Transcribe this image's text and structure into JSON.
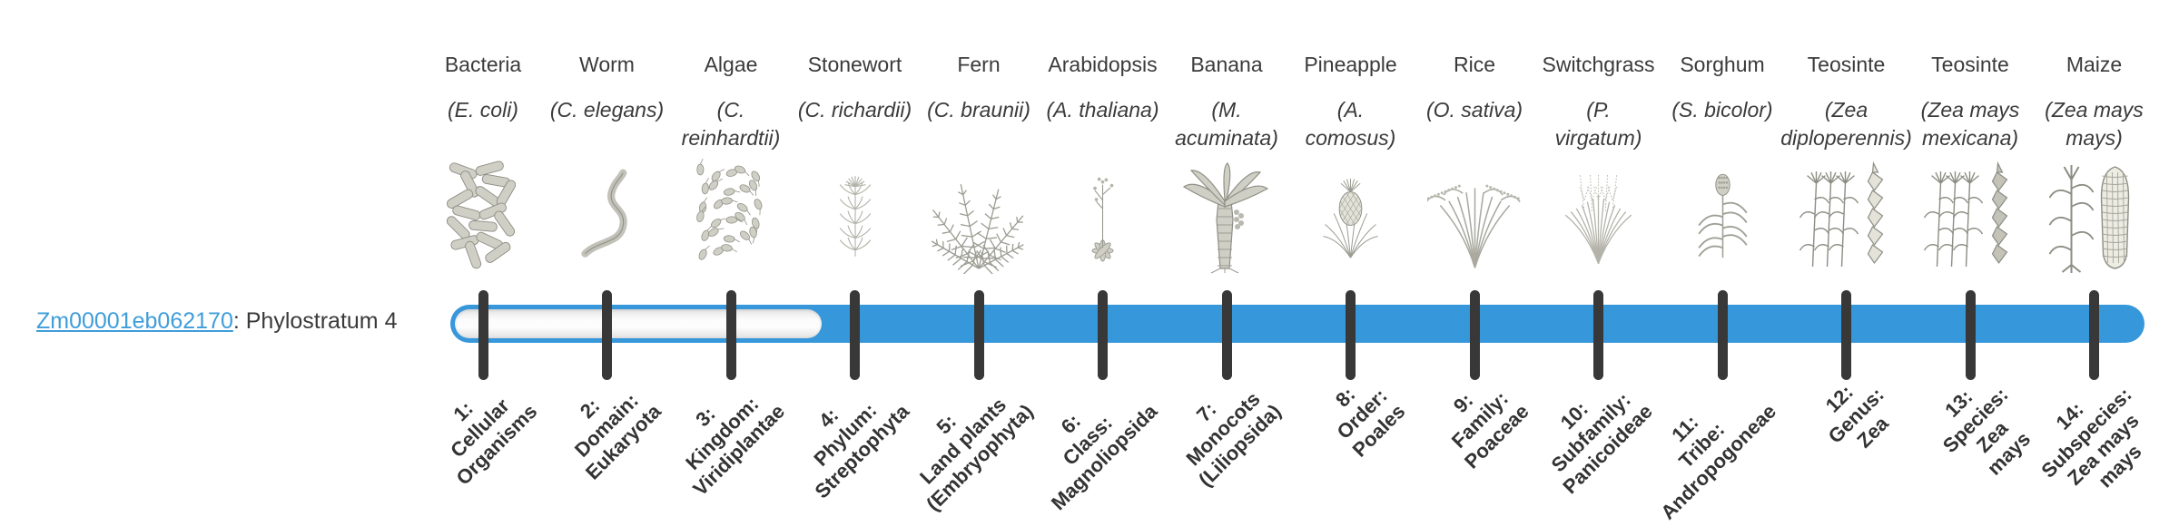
{
  "gene": {
    "id": "Zm00001eb062170",
    "suffix": ": Phylostratum 4",
    "phylostratum": 4
  },
  "colors": {
    "bar_blue": "#3797db",
    "tick_dark": "#383838",
    "link_blue": "#3f9dda",
    "text_dark": "#3a3a3a",
    "sketch_gray": "#a8a89f"
  },
  "organisms": [
    {
      "name": "Bacteria",
      "sci": "(E. coli)",
      "illustration": "bacteria"
    },
    {
      "name": "Worm",
      "sci": "(C. elegans)",
      "illustration": "worm"
    },
    {
      "name": "Algae",
      "sci": "(C.\nreinhardtii)",
      "illustration": "algae"
    },
    {
      "name": "Stonewort",
      "sci": "(C. richardii)",
      "illustration": "stonewort"
    },
    {
      "name": "Fern",
      "sci": "(C. braunii)",
      "illustration": "fern"
    },
    {
      "name": "Arabidopsis",
      "sci": "(A. thaliana)",
      "illustration": "arabidopsis"
    },
    {
      "name": "Banana",
      "sci": "(M.\nacuminata)",
      "illustration": "banana"
    },
    {
      "name": "Pineapple",
      "sci": "(A.\ncomosus)",
      "illustration": "pineapple"
    },
    {
      "name": "Rice",
      "sci": "(O. sativa)",
      "illustration": "rice"
    },
    {
      "name": "Switchgrass",
      "sci": "(P.\nvirgatum)",
      "illustration": "switchgrass"
    },
    {
      "name": "Sorghum",
      "sci": "(S. bicolor)",
      "illustration": "sorghum"
    },
    {
      "name": "Teosinte",
      "sci": "(Zea\ndiploperennis)",
      "illustration": "teosinte-diploperennis"
    },
    {
      "name": "Teosinte",
      "sci": "(Zea mays\nmexicana)",
      "illustration": "teosinte-mexicana"
    },
    {
      "name": "Maize",
      "sci": "(Zea mays\nmays)",
      "illustration": "maize"
    }
  ],
  "strata": [
    {
      "label": "1:\nCellular\nOrganisms"
    },
    {
      "label": "2:\nDomain:\nEukaryota"
    },
    {
      "label": "3:\nKingdom:\nViridiplantae"
    },
    {
      "label": "4:\nPhylum:\nStreptophyta"
    },
    {
      "label": "5:\nLand plants\n(Embryophyta)"
    },
    {
      "label": "6:\nClass:\nMagnoliopsida"
    },
    {
      "label": "7:\nMonocots\n(Liliopsida)"
    },
    {
      "label": "8:\nOrder:\nPoales"
    },
    {
      "label": "9:\nFamily:\nPoaceae"
    },
    {
      "label": "10:\nSubfamily:\nPanicoideae"
    },
    {
      "label": "11:\nTribe:\nAndropogoneae"
    },
    {
      "label": "12:\nGenus:\nZea"
    },
    {
      "label": "13:\nSpecies:\nZea\nmays"
    },
    {
      "label": "14:\nSubspecies:\nZea mays\nmays"
    }
  ],
  "chart_data": {
    "type": "bar",
    "title": "Zm00001eb062170: Phylostratum 4",
    "categories": [
      "1: Cellular Organisms",
      "2: Domain: Eukaryota",
      "3: Kingdom: Viridiplantae",
      "4: Phylum: Streptophyta",
      "5: Land plants (Embryophyta)",
      "6: Class: Magnoliopsida",
      "7: Monocots (Liliopsida)",
      "8: Order: Poales",
      "9: Family: Poaceae",
      "10: Subfamily: Panicoideae",
      "11: Tribe: Andropogoneae",
      "12: Genus: Zea",
      "13: Species: Zea mays",
      "14: Subspecies: Zea mays mays"
    ],
    "organism_labels": [
      "Bacteria (E. coli)",
      "Worm (C. elegans)",
      "Algae (C. reinhardtii)",
      "Stonewort (C. richardii)",
      "Fern (C. braunii)",
      "Arabidopsis (A. thaliana)",
      "Banana (M. acuminata)",
      "Pineapple (A. comosus)",
      "Rice (O. sativa)",
      "Switchgrass (P. virgatum)",
      "Sorghum (S. bicolor)",
      "Teosinte (Zea diploperennis)",
      "Teosinte (Zea mays mexicana)",
      "Maize (Zea mays mays)"
    ],
    "values": [
      0,
      0,
      0,
      1,
      1,
      1,
      1,
      1,
      1,
      1,
      1,
      1,
      1,
      1
    ],
    "gene_phylostratum": 4,
    "bar_filled_range": [
      4,
      14
    ],
    "bar_unfilled_range": [
      1,
      3
    ],
    "legend_position": "none",
    "grid": false
  }
}
